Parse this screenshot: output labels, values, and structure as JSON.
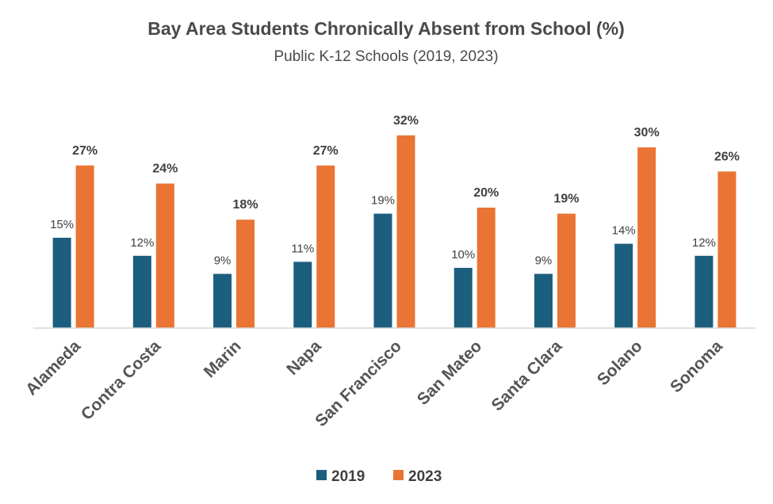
{
  "chart_data": {
    "type": "bar",
    "title": "Bay Area Students Chronically Absent from School (%)",
    "subtitle": "Public K-12 Schools (2019, 2023)",
    "categories": [
      "Alameda",
      "Contra Costa",
      "Marin",
      "Napa",
      "San Francisco",
      "San Mateo",
      "Santa Clara",
      "Solano",
      "Sonoma"
    ],
    "series": [
      {
        "name": "2019",
        "color": "#1b5e7e",
        "values": [
          15,
          12,
          9,
          11,
          19,
          10,
          9,
          14,
          12
        ],
        "labels": [
          "15%",
          "12%",
          "9%",
          "11%",
          "19%",
          "10%",
          "9%",
          "14%",
          "12%"
        ]
      },
      {
        "name": "2023",
        "color": "#e97433",
        "values": [
          27,
          24,
          18,
          27,
          32,
          20,
          19,
          30,
          26
        ],
        "labels": [
          "27%",
          "24%",
          "18%",
          "27%",
          "32%",
          "20%",
          "19%",
          "30%",
          "26%"
        ]
      }
    ],
    "xlabel": "",
    "ylabel": "",
    "ylim": [
      0,
      32
    ],
    "grid": false,
    "legend": "bottom-center"
  }
}
